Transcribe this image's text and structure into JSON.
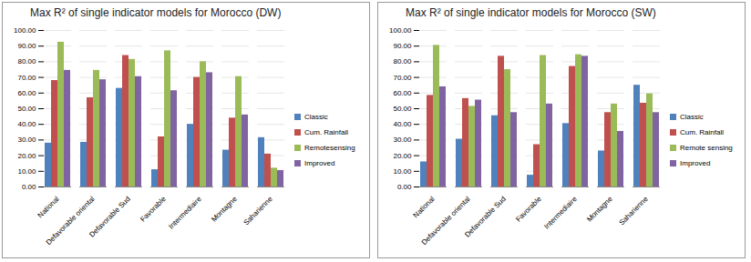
{
  "chart_data": [
    {
      "type": "bar",
      "title": "Max R² of single indicator models for Morocco (DW)",
      "categories": [
        "National",
        "Defavorable oriental",
        "Defavorable Sud",
        "Favorable",
        "Intermediaire",
        "Montagne",
        "Saharienne"
      ],
      "series": [
        {
          "name": "Classic",
          "color": "#4F81BD",
          "values": [
            28,
            28.5,
            63,
            11,
            40,
            23.5,
            31.5
          ]
        },
        {
          "name": "Cum. Rainfall",
          "color": "#C0504D",
          "values": [
            68,
            57,
            84,
            32,
            70,
            44,
            21
          ]
        },
        {
          "name": "Remotesensing",
          "color": "#9BBB59",
          "values": [
            92.5,
            74.5,
            81.5,
            87,
            80,
            70.5,
            12
          ]
        },
        {
          "name": "Improved",
          "color": "#8064A2",
          "values": [
            74.5,
            68.5,
            70.5,
            61.5,
            73,
            46,
            10.5
          ]
        }
      ],
      "ylim": [
        0,
        100
      ],
      "yticks": [
        {
          "value": 0,
          "label": "0.00"
        },
        {
          "value": 10,
          "label": "10.00"
        },
        {
          "value": 20,
          "label": "20.00"
        },
        {
          "value": 30,
          "label": "30.00"
        },
        {
          "value": 40,
          "label": "40.00"
        },
        {
          "value": 50,
          "label": "50.00"
        },
        {
          "value": 60,
          "label": "60.00"
        },
        {
          "value": 70,
          "label": "70.00"
        },
        {
          "value": 80,
          "label": "80.00"
        },
        {
          "value": 90,
          "label": "90.00"
        },
        {
          "value": 100,
          "label": "100.00"
        }
      ],
      "grid": true,
      "legend": "right"
    },
    {
      "type": "bar",
      "title": "Max R² of single indicator models for Morocco (SW)",
      "categories": [
        "National",
        "Defavorable oriental",
        "Defavorable Sud",
        "Favorable",
        "Intermediaire",
        "Montagne",
        "Saharienne"
      ],
      "series": [
        {
          "name": "Classic",
          "color": "#4F81BD",
          "values": [
            16,
            30.5,
            45.5,
            7.5,
            40.5,
            23,
            65
          ]
        },
        {
          "name": "Cum. Rainfall",
          "color": "#C0504D",
          "values": [
            58.5,
            56.5,
            83.5,
            27,
            77,
            47.5,
            53.5
          ]
        },
        {
          "name": "Remote sensing",
          "color": "#9BBB59",
          "values": [
            90.5,
            51.5,
            75,
            84,
            84.5,
            53,
            59.5
          ]
        },
        {
          "name": "Improved",
          "color": "#8064A2",
          "values": [
            64,
            55.5,
            47.5,
            53,
            83.5,
            35.5,
            47.5
          ]
        }
      ],
      "ylim": [
        0,
        100
      ],
      "yticks": [
        {
          "value": 0,
          "label": "0.00"
        },
        {
          "value": 10,
          "label": "10.00"
        },
        {
          "value": 20,
          "label": "20.00"
        },
        {
          "value": 30,
          "label": "30.00"
        },
        {
          "value": 40,
          "label": "40.00"
        },
        {
          "value": 50,
          "label": "50.00"
        },
        {
          "value": 60,
          "label": "60.00"
        },
        {
          "value": 70,
          "label": "70.00"
        },
        {
          "value": 80,
          "label": "80.00"
        },
        {
          "value": 90,
          "label": "90.00"
        },
        {
          "value": 100,
          "label": "100.00"
        }
      ],
      "grid": true,
      "legend": "right"
    }
  ]
}
